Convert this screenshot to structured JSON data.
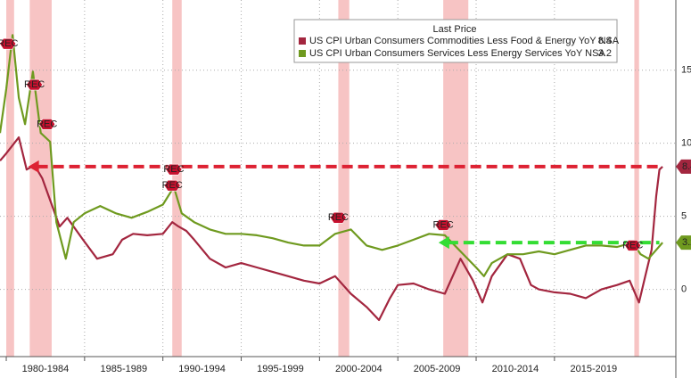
{
  "chart_data": {
    "type": "line",
    "legend_title": "Last Price",
    "recession_label": "REC",
    "xlim": [
      1979.6,
      2022.75
    ],
    "ylim": [
      -4.6,
      19.8
    ],
    "yticks": [
      0,
      5,
      10,
      15
    ],
    "grid": true,
    "periods": [
      {
        "label": "1980-1984",
        "start": 1980,
        "end": 1985
      },
      {
        "label": "1985-1989",
        "start": 1985,
        "end": 1990
      },
      {
        "label": "1990-1994",
        "start": 1990,
        "end": 1995
      },
      {
        "label": "1995-1999",
        "start": 1995,
        "end": 2000
      },
      {
        "label": "2000-2004",
        "start": 2000,
        "end": 2005
      },
      {
        "label": "2005-2009",
        "start": 2005,
        "end": 2010
      },
      {
        "label": "2010-2014",
        "start": 2010,
        "end": 2015
      },
      {
        "label": "2015-2019",
        "start": 2015,
        "end": 2020
      }
    ],
    "recessions": [
      [
        1980.0,
        1980.5
      ],
      [
        1981.5,
        1982.9
      ],
      [
        1990.6,
        1991.2
      ],
      [
        2001.2,
        2001.9
      ],
      [
        2007.9,
        2009.5
      ],
      [
        2020.1,
        2020.4
      ]
    ],
    "series": [
      {
        "name": "US CPI Urban Consumers Commodities Less Food & Energy YoY NSA",
        "color": "#a3263f",
        "last_price": 8.4,
        "x": [
          1979.6,
          1980,
          1980.8,
          1981.3,
          1981.8,
          1982.3,
          1982.9,
          1983.4,
          1983.9,
          1984.9,
          1985.8,
          1986.8,
          1987.4,
          1988.1,
          1989,
          1990,
          1990.6,
          1991,
          1991.5,
          1992,
          1993,
          1994,
          1995,
          1996,
          1997,
          1998,
          1999,
          2000,
          2001,
          2002,
          2003,
          2003.8,
          2004.5,
          2005,
          2006,
          2007,
          2008,
          2009,
          2009.8,
          2010.4,
          2011,
          2012,
          2012.8,
          2013.5,
          2014,
          2015,
          2016,
          2017,
          2018,
          2019,
          2019.8,
          2020.4,
          2020.8,
          2021.2,
          2021.5,
          2021.7,
          2021.9
        ],
        "values": [
          8.8,
          9.3,
          10.4,
          8.2,
          8.5,
          7.6,
          5.8,
          4.3,
          4.9,
          3.4,
          2.1,
          2.4,
          3.4,
          3.8,
          3.7,
          3.8,
          4.6,
          4.3,
          4.0,
          3.4,
          2.1,
          1.5,
          1.8,
          1.5,
          1.2,
          0.9,
          0.6,
          0.4,
          0.9,
          -0.3,
          -1.2,
          -2.1,
          -0.6,
          0.3,
          0.4,
          0,
          -0.3,
          2.1,
          0.6,
          -0.9,
          0.9,
          2.4,
          2.1,
          0.3,
          0,
          -0.2,
          -0.3,
          -0.6,
          0,
          0.3,
          0.6,
          -0.9,
          0.9,
          2.7,
          6.4,
          8.2,
          8.4
        ]
      },
      {
        "name": "US CPI Urban Consumers Services Less Energy Services YoY NSA",
        "color": "#6f9a1f",
        "last_price": 3.2,
        "x": [
          1979.6,
          1980,
          1980.4,
          1980.8,
          1981.2,
          1981.7,
          1982.2,
          1982.8,
          1983.2,
          1983.8,
          1984.3,
          1985,
          1986,
          1987,
          1988,
          1989,
          1990,
          1990.7,
          1991.2,
          1992,
          1993,
          1994,
          1995,
          1996,
          1997,
          1998,
          1999,
          2000,
          2001,
          2002,
          2003,
          2004,
          2005,
          2006,
          2007,
          2008,
          2009,
          2010,
          2010.5,
          2011,
          2012,
          2013,
          2014,
          2015,
          2016,
          2017,
          2018,
          2019,
          2020,
          2020.5,
          2021,
          2021.5,
          2021.9
        ],
        "values": [
          10.7,
          13.7,
          17.4,
          13.1,
          11.3,
          14.9,
          10.7,
          10.1,
          4.6,
          2.1,
          4.6,
          5.2,
          5.7,
          5.2,
          4.9,
          5.3,
          5.8,
          7.0,
          5.2,
          4.6,
          4.1,
          3.8,
          3.8,
          3.7,
          3.5,
          3.2,
          3.0,
          3.0,
          3.8,
          4.1,
          3.0,
          2.7,
          3.0,
          3.4,
          3.8,
          3.7,
          2.6,
          1.5,
          0.9,
          1.8,
          2.4,
          2.4,
          2.6,
          2.4,
          2.7,
          3.0,
          3.0,
          2.9,
          3.2,
          2.4,
          2.1,
          2.7,
          3.2
        ]
      }
    ]
  }
}
